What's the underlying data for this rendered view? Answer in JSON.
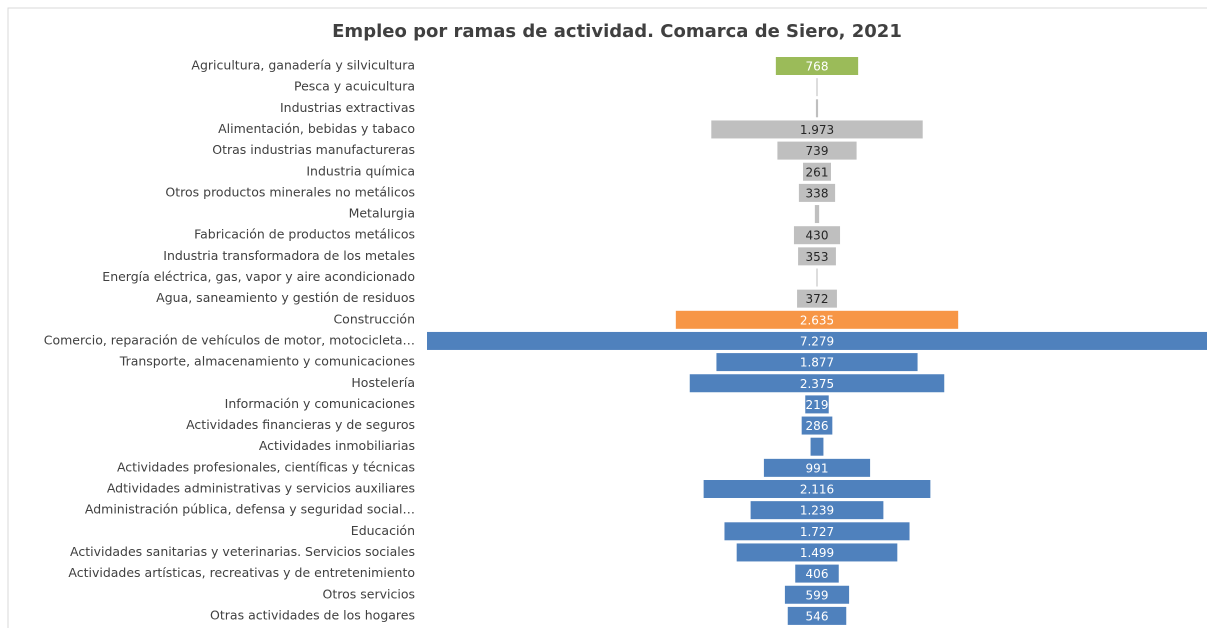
{
  "chart_data": {
    "type": "funnel",
    "title": "Empleo por ramas de actividad. Comarca de Siero, 2021",
    "categories": [
      "Agricultura, ganadería y silvicultura",
      "Pesca y acuicultura",
      "Industrias extractivas",
      "Alimentación, bebidas y tabaco",
      "Otras industrias manufactureras",
      "Industria química",
      "Otros productos minerales no metálicos",
      "Metalurgia",
      "Fabricación de productos metálicos",
      "Industria transformadora de los metales",
      "Energía eléctrica, gas, vapor y aire acondicionado",
      "Agua, saneamiento y gestión de residuos",
      "Construcción",
      "Comercio, reparación de vehículos de motor, motocicleta…",
      "Transporte, almacenamiento y comunicaciones",
      "Hostelería",
      "Información y comunicaciones",
      "Actividades financieras y de seguros",
      "Actividades inmobiliarias",
      "Actividades profesionales, científicas y técnicas",
      "Adtividades administrativas y servicios auxiliares",
      "Administración pública, defensa y seguridad social…",
      "Educación",
      "Actividades sanitarias y veterinarias. Servicios sociales",
      "Actividades artísticas, recreativas y de entretenimiento",
      "Otros servicios",
      "Otras actividades de los hogares"
    ],
    "values": [
      768,
      10,
      20,
      1973,
      739,
      261,
      338,
      40,
      430,
      353,
      10,
      372,
      2635,
      7279,
      1877,
      2375,
      219,
      286,
      120,
      991,
      2116,
      1239,
      1727,
      1499,
      406,
      599,
      546
    ],
    "value_labels": [
      768,
      null,
      null,
      "1.973",
      739,
      261,
      338,
      null,
      430,
      353,
      null,
      372,
      "2.635",
      "7.279",
      "1.877",
      "2.375",
      219,
      286,
      null,
      991,
      "2.116",
      "1.239",
      "1.727",
      "1.499",
      406,
      599,
      546
    ],
    "colors": [
      "#9bbb59",
      "#bfbfbf",
      "#bfbfbf",
      "#bfbfbf",
      "#bfbfbf",
      "#bfbfbf",
      "#bfbfbf",
      "#bfbfbf",
      "#bfbfbf",
      "#bfbfbf",
      "#bfbfbf",
      "#bfbfbf",
      "#f79646",
      "#4f81bd",
      "#4f81bd",
      "#4f81bd",
      "#4f81bd",
      "#4f81bd",
      "#4f81bd",
      "#4f81bd",
      "#4f81bd",
      "#4f81bd",
      "#4f81bd",
      "#4f81bd",
      "#4f81bd",
      "#4f81bd",
      "#4f81bd"
    ]
  }
}
